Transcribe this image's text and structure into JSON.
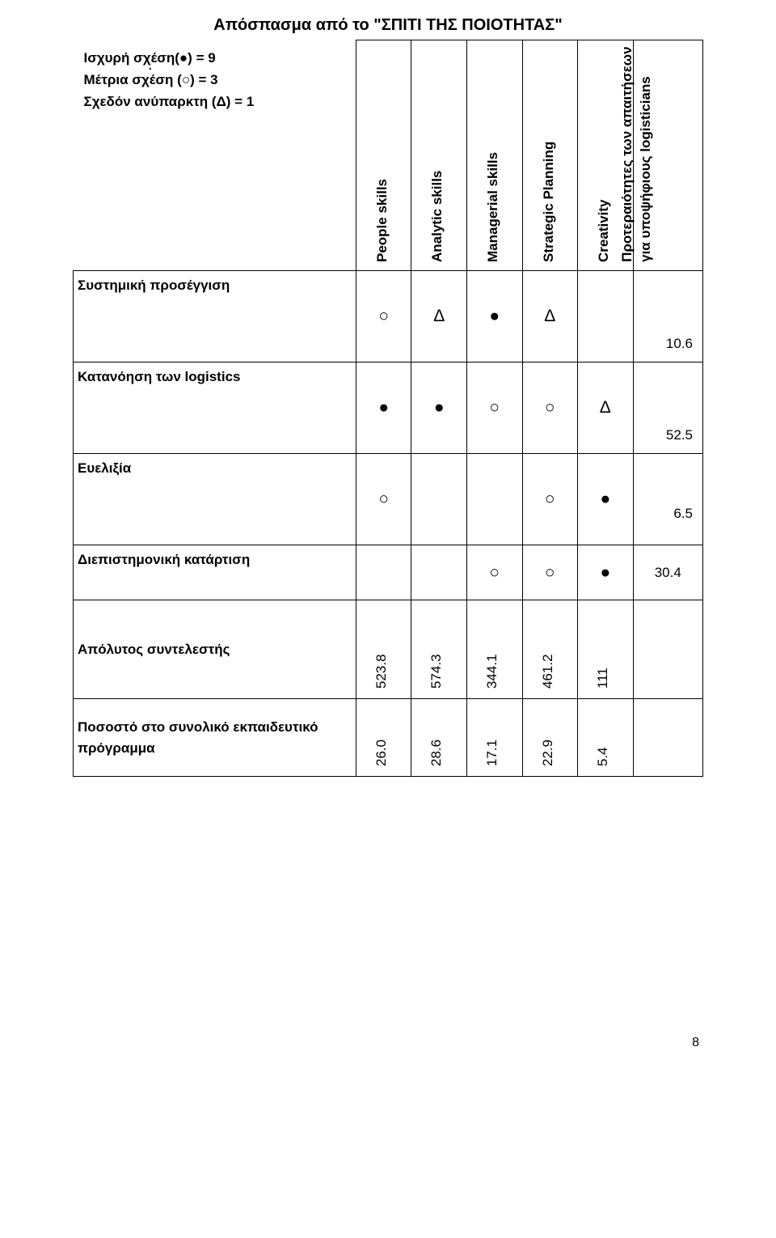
{
  "title": "Απόσπασμα από το \"ΣΠΙΤΙ ΤΗΣ ΠΟΙΟΤΗΤΑΣ\"",
  "legend": {
    "strong": "Ισχυρή σχέση(●) = 9",
    "medium": "Μέτρια σχέση (○) = 3",
    "weak": "Σχεδόν ανύπαρκτη (Δ) = 1"
  },
  "columns": {
    "c0": "People skills",
    "c1": "Analytic skills",
    "c2": "Managerial skills",
    "c3": "Strategic Planning",
    "c4": "Creativity",
    "priority": "Προτεραιότητες των απαιτήσεων για υποψήφιους logisticians"
  },
  "rows": {
    "r0": {
      "label": "Συστημική προσέγγιση"
    },
    "r1": {
      "label": "Κατανόηση των logistics"
    },
    "r2": {
      "label": "Ευελιξία"
    },
    "r3": {
      "label": "Διεπιστημονική κατάρτιση"
    },
    "abs": {
      "label": "Απόλυτος συντελεστής"
    },
    "pct": {
      "label": "Ποσοστό στο συνολικό εκπαιδευτικό πρόγραμμα"
    }
  },
  "symbols": {
    "strong": "●",
    "medium": "○",
    "weak": "Δ"
  },
  "matrix": {
    "r0": [
      "medium",
      "weak",
      "strong",
      "weak",
      ""
    ],
    "r1": [
      "strong",
      "strong",
      "medium",
      "medium",
      "weak"
    ],
    "r2": [
      "medium",
      "",
      "",
      "medium",
      "strong"
    ],
    "r3": [
      "",
      "",
      "medium",
      "medium",
      "strong"
    ]
  },
  "priorities": {
    "r0": "10.6",
    "r1": "52.5",
    "r2": "6.5",
    "r3": "30.4"
  },
  "absolute": {
    "c0": "523.8",
    "c1": "574.3",
    "c2": "344.1",
    "c3": "461.2",
    "c4": "111"
  },
  "percent": {
    "c0": "26.0",
    "c1": "28.6",
    "c2": "17.1",
    "c3": "22.9",
    "c4": "5.4"
  },
  "page_number": "8"
}
